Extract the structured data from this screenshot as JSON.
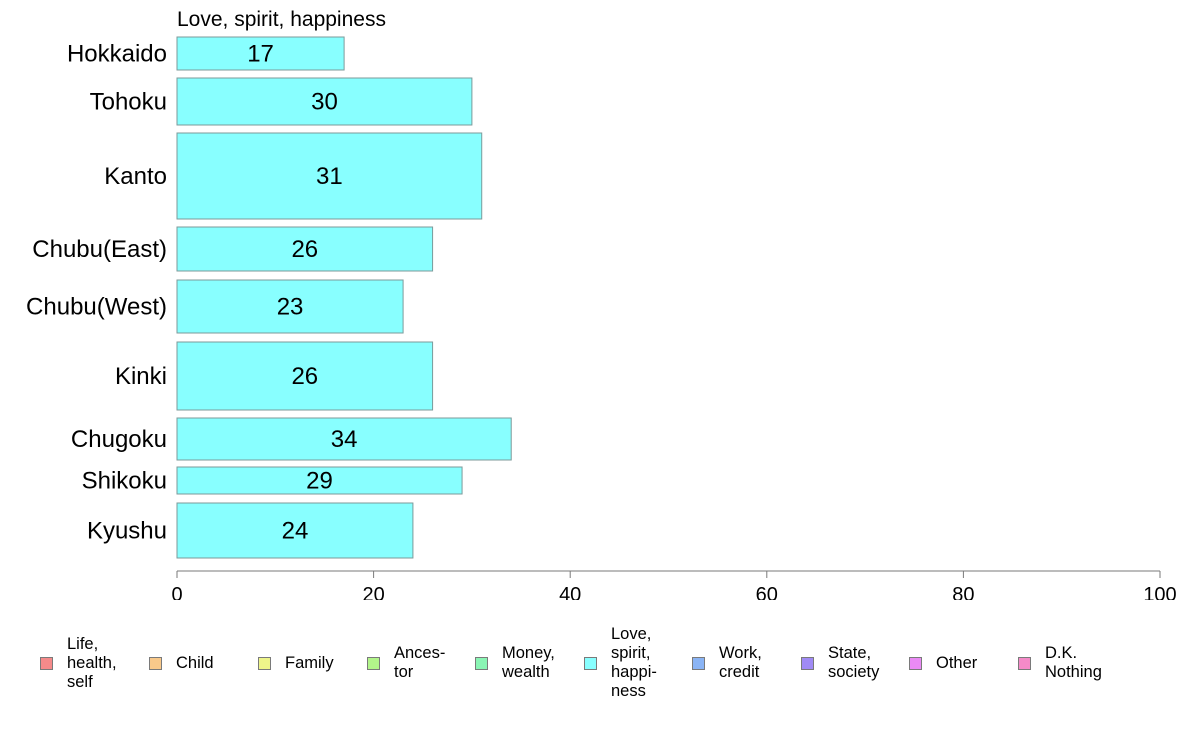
{
  "chart_data": {
    "type": "bar",
    "orientation": "horizontal",
    "title": "Love, spirit, happiness",
    "categories": [
      "Hokkaido",
      "Tohoku",
      "Kanto",
      "Chubu(East)",
      "Chubu(West)",
      "Kinki",
      "Chugoku",
      "Shikoku",
      "Kyushu"
    ],
    "series": [
      {
        "name": "Love, spirit, happiness",
        "values": [
          17,
          30,
          31,
          26,
          23,
          26,
          34,
          29,
          24
        ],
        "color": "#88ffff"
      }
    ],
    "xlim": [
      0,
      100
    ],
    "xticks": [
      "0",
      "20",
      "40",
      "60",
      "80",
      "100"
    ],
    "grid": false,
    "legend_position": "bottom",
    "legend": [
      {
        "label": "Life,\nhealth,\nself",
        "color": "#f58a8a"
      },
      {
        "label": "Child",
        "color": "#f9c98a"
      },
      {
        "label": "Family",
        "color": "#eef58a"
      },
      {
        "label": "Ances-\ntor",
        "color": "#b2f58a"
      },
      {
        "label": "Money,\nwealth",
        "color": "#8af5b4"
      },
      {
        "label": "Love,\nspirit,\nhappi-\nness",
        "color": "#88ffff"
      },
      {
        "label": "Work,\ncredit",
        "color": "#8ab4f5"
      },
      {
        "label": "State,\nsociety",
        "color": "#a08af5"
      },
      {
        "label": "Other",
        "color": "#ea8af5"
      },
      {
        "label": "D.K.\nNothing",
        "color": "#f58ac8"
      }
    ]
  }
}
